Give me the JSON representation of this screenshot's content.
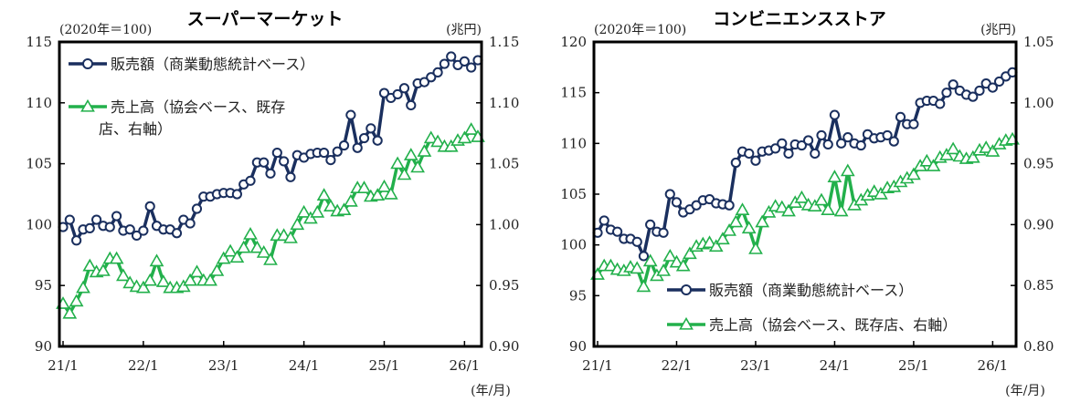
{
  "chart_data": [
    {
      "type": "line",
      "title": "スーパーマーケット",
      "left_unit": "(2020年＝100)",
      "right_unit": "(兆円)",
      "x_unit": "(年/月)",
      "x_tick_labels": [
        "21/1",
        "22/1",
        "23/1",
        "24/1",
        "25/1",
        "26/1"
      ],
      "y_left": {
        "min": 90,
        "max": 115,
        "ticks": [
          90,
          95,
          100,
          105,
          110,
          115
        ]
      },
      "y_right": {
        "min": 0.9,
        "max": 1.15,
        "ticks": [
          "0.90",
          "0.95",
          "1.00",
          "1.05",
          "1.10",
          "1.15"
        ]
      },
      "legend_position": "top-left",
      "series": [
        {
          "name": "販売額（商業動態統計ベース）",
          "axis": "left",
          "color": "#1a2f5e",
          "marker": "circle",
          "values": [
            99.8,
            100.4,
            98.7,
            99.6,
            99.7,
            100.4,
            99.9,
            99.8,
            100.7,
            99.5,
            99.6,
            99.1,
            99.5,
            101.5,
            99.9,
            99.6,
            99.6,
            99.3,
            100.4,
            100.1,
            101.3,
            102.3,
            102.3,
            102.5,
            102.6,
            102.6,
            102.5,
            103.3,
            103.6,
            105.1,
            105.1,
            104.2,
            105.9,
            105.2,
            103.9,
            105.7,
            105.5,
            105.8,
            105.9,
            105.9,
            105.3,
            106.0,
            106.5,
            109.0,
            106.3,
            107.1,
            107.9,
            106.9,
            110.8,
            110.4,
            110.7,
            111.2,
            109.8,
            111.6,
            111.7,
            112.1,
            112.5,
            113.2,
            113.8,
            113.1,
            113.4,
            112.9,
            113.5
          ]
        },
        {
          "name": "売上高（協会ベース、既存店、右軸）",
          "axis": "right",
          "color": "#22b04b",
          "marker": "triangle",
          "values": [
            0.935,
            0.927,
            0.937,
            0.948,
            0.966,
            0.961,
            0.962,
            0.972,
            0.972,
            0.958,
            0.952,
            0.949,
            0.948,
            0.954,
            0.97,
            0.953,
            0.948,
            0.948,
            0.949,
            0.954,
            0.961,
            0.954,
            0.954,
            0.962,
            0.972,
            0.978,
            0.973,
            0.981,
            0.992,
            0.981,
            0.977,
            0.971,
            0.991,
            0.991,
            0.989,
            1.0,
            1.01,
            1.005,
            1.01,
            1.024,
            1.015,
            1.011,
            1.012,
            1.019,
            1.03,
            1.03,
            1.023,
            1.024,
            1.031,
            1.025,
            1.05,
            1.041,
            1.057,
            1.047,
            1.06,
            1.071,
            1.068,
            1.064,
            1.064,
            1.069,
            1.071,
            1.078,
            1.072
          ]
        }
      ]
    },
    {
      "type": "line",
      "title": "コンビニエンスストア",
      "left_unit": "(2020年＝100)",
      "right_unit": "(兆円)",
      "x_unit": "(年/月)",
      "x_tick_labels": [
        "21/1",
        "22/1",
        "23/1",
        "24/1",
        "25/1",
        "26/1"
      ],
      "y_left": {
        "min": 90,
        "max": 120,
        "ticks": [
          90,
          95,
          100,
          105,
          110,
          115,
          120
        ]
      },
      "y_right": {
        "min": 0.8,
        "max": 1.05,
        "ticks": [
          "0.80",
          "0.85",
          "0.90",
          "0.95",
          "1.00",
          "1.05"
        ]
      },
      "legend_position": "bottom-right",
      "series": [
        {
          "name": "販売額（商業動態統計ベース）",
          "axis": "left",
          "color": "#1a2f5e",
          "marker": "circle",
          "values": [
            101.2,
            102.4,
            101.5,
            101.3,
            100.6,
            100.6,
            100.3,
            98.9,
            102.0,
            101.3,
            101.2,
            105.0,
            104.2,
            103.2,
            103.5,
            103.9,
            104.4,
            104.5,
            104.1,
            104.0,
            103.9,
            108.1,
            109.2,
            109.0,
            108.3,
            109.2,
            109.3,
            109.5,
            110.0,
            109.0,
            109.9,
            109.8,
            110.3,
            109.0,
            110.8,
            109.9,
            112.8,
            110.0,
            110.6,
            110.0,
            109.8,
            110.9,
            110.5,
            110.6,
            110.8,
            110.2,
            112.6,
            111.9,
            111.9,
            114.0,
            114.2,
            114.2,
            113.9,
            115.0,
            115.8,
            115.2,
            114.8,
            114.6,
            115.2,
            115.9,
            115.5,
            116.1,
            116.6,
            117.0
          ]
        },
        {
          "name": "売上高（協会ベース、既存店、右軸）",
          "axis": "right",
          "color": "#22b04b",
          "marker": "triangle",
          "values": [
            0.859,
            0.866,
            0.866,
            0.863,
            0.862,
            0.865,
            0.864,
            0.849,
            0.87,
            0.858,
            0.862,
            0.874,
            0.869,
            0.866,
            0.876,
            0.882,
            0.884,
            0.885,
            0.882,
            0.888,
            0.895,
            0.902,
            0.912,
            0.897,
            0.88,
            0.902,
            0.91,
            0.915,
            0.914,
            0.911,
            0.918,
            0.922,
            0.916,
            0.915,
            0.92,
            0.912,
            0.939,
            0.911,
            0.944,
            0.916,
            0.92,
            0.924,
            0.927,
            0.925,
            0.93,
            0.931,
            0.935,
            0.938,
            0.941,
            0.948,
            0.952,
            0.948,
            0.955,
            0.957,
            0.962,
            0.956,
            0.954,
            0.955,
            0.961,
            0.963,
            0.96,
            0.966,
            0.969,
            0.97
          ]
        }
      ]
    }
  ]
}
